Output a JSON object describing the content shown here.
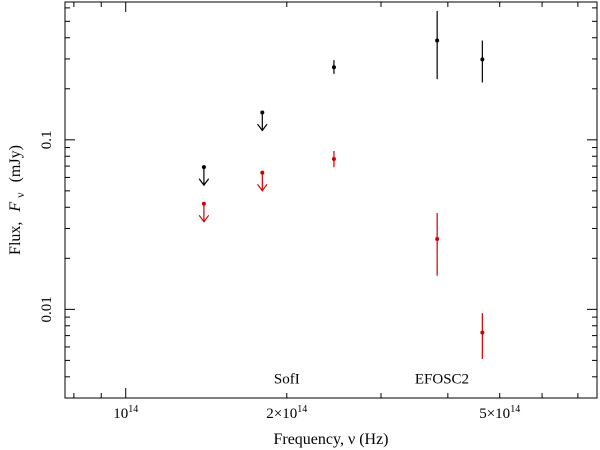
{
  "chart_data": {
    "type": "scatter",
    "title": "",
    "xlabel": "Frequency, ν (Hz)",
    "ylabel_text": "Flux,",
    "ylabel_symbol": "F",
    "ylabel_subscript": "ν",
    "ylabel_unit": "(mJy)",
    "xscale": "log",
    "yscale": "log",
    "xlim": [
      77000000000000.0,
      760000000000000.0
    ],
    "ylim": [
      0.003,
      0.65
    ],
    "grid": false,
    "x_ticks": [
      {
        "value": 100000000000000.0,
        "label_base": "10",
        "label_sup": "14"
      },
      {
        "value": 200000000000000.0,
        "label_base": "2×10",
        "label_sup": "14"
      },
      {
        "value": 500000000000000.0,
        "label_base": "5×10",
        "label_sup": "14"
      }
    ],
    "y_ticks": [
      {
        "value": 0.1,
        "label": "0.1"
      },
      {
        "value": 0.01,
        "label": "0.01"
      }
    ],
    "annotations": [
      {
        "text": "SofI",
        "x": 200000000000000.0,
        "y": 0.00365
      },
      {
        "text": "EFOSC2",
        "x": 390000000000000.0,
        "y": 0.00365
      }
    ],
    "series": [
      {
        "color": "#000000",
        "points": [
          {
            "x": 140000000000000.0,
            "y": 0.069,
            "upper_limit": true
          },
          {
            "x": 180000000000000.0,
            "y": 0.145,
            "upper_limit": true
          },
          {
            "x": 245000000000000.0,
            "y": 0.268,
            "ylow": 0.245,
            "yhigh": 0.295
          },
          {
            "x": 382000000000000.0,
            "y": 0.385,
            "ylow": 0.228,
            "yhigh": 0.575
          },
          {
            "x": 464000000000000.0,
            "y": 0.298,
            "ylow": 0.218,
            "yhigh": 0.385
          }
        ]
      },
      {
        "color": "#cc0000",
        "points": [
          {
            "x": 140000000000000.0,
            "y": 0.042,
            "upper_limit": true
          },
          {
            "x": 180000000000000.0,
            "y": 0.064,
            "upper_limit": true
          },
          {
            "x": 245000000000000.0,
            "y": 0.077,
            "ylow": 0.069,
            "yhigh": 0.086
          },
          {
            "x": 382000000000000.0,
            "y": 0.026,
            "ylow": 0.0158,
            "yhigh": 0.037
          },
          {
            "x": 464000000000000.0,
            "y": 0.0073,
            "ylow": 0.0051,
            "yhigh": 0.0095
          }
        ]
      }
    ]
  }
}
